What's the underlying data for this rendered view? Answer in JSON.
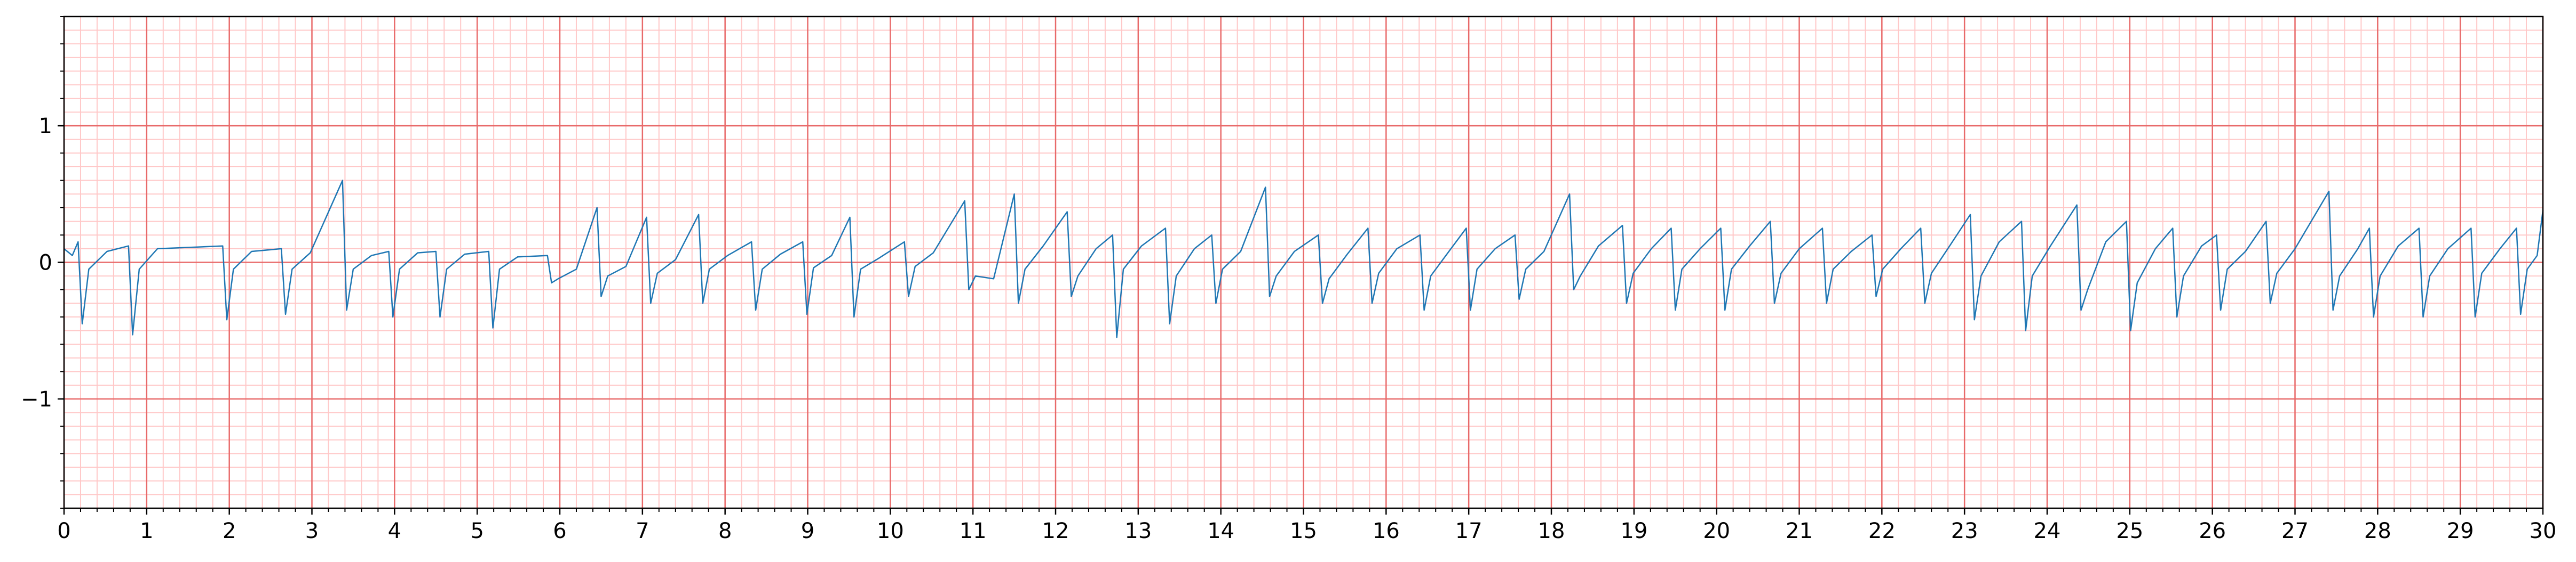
{
  "chart_data": {
    "type": "line",
    "x": [
      0,
      0.1,
      0.17,
      0.22,
      0.3,
      0.52,
      0.78,
      0.83,
      0.91,
      1.13,
      1.92,
      1.97,
      2.05,
      2.27,
      2.63,
      2.68,
      2.76,
      2.98,
      3.37,
      3.42,
      3.5,
      3.72,
      3.93,
      3.98,
      4.06,
      4.28,
      4.5,
      4.55,
      4.63,
      4.85,
      5.14,
      5.19,
      5.27,
      5.49,
      5.85,
      5.9,
      5.98,
      6.2,
      6.45,
      6.5,
      6.58,
      6.8,
      7.05,
      7.1,
      7.18,
      7.4,
      7.68,
      7.73,
      7.81,
      8.03,
      8.32,
      8.37,
      8.45,
      8.67,
      8.94,
      8.99,
      9.07,
      9.29,
      9.51,
      9.56,
      9.64,
      9.86,
      10.17,
      10.22,
      10.3,
      10.52,
      10.9,
      10.95,
      11.03,
      11.25,
      11.5,
      11.55,
      11.63,
      11.85,
      12.14,
      12.19,
      12.27,
      12.49,
      12.69,
      12.74,
      12.82,
      13.04,
      13.33,
      13.38,
      13.46,
      13.68,
      13.89,
      13.94,
      14.02,
      14.24,
      14.54,
      14.59,
      14.67,
      14.89,
      15.18,
      15.23,
      15.31,
      15.53,
      15.78,
      15.83,
      15.91,
      16.13,
      16.41,
      16.46,
      16.54,
      16.76,
      16.97,
      17.02,
      17.1,
      17.32,
      17.56,
      17.61,
      17.69,
      17.91,
      18.22,
      18.27,
      18.35,
      18.57,
      18.86,
      18.91,
      18.99,
      19.21,
      19.45,
      19.5,
      19.58,
      19.8,
      20.05,
      20.1,
      20.18,
      20.4,
      20.65,
      20.7,
      20.78,
      21.0,
      21.28,
      21.33,
      21.41,
      21.63,
      21.88,
      21.93,
      22.01,
      22.23,
      22.47,
      22.52,
      22.6,
      22.82,
      23.07,
      23.12,
      23.2,
      23.42,
      23.69,
      23.74,
      23.82,
      24.04,
      24.36,
      24.41,
      24.49,
      24.71,
      24.96,
      25.01,
      25.09,
      25.31,
      25.52,
      25.57,
      25.65,
      25.87,
      26.05,
      26.1,
      26.18,
      26.4,
      26.65,
      26.7,
      26.78,
      27.0,
      27.41,
      27.46,
      27.54,
      27.76,
      27.9,
      27.95,
      28.03,
      28.25,
      28.5,
      28.55,
      28.63,
      28.85,
      29.13,
      29.18,
      29.26,
      29.48,
      29.68,
      29.73,
      29.81,
      29.93,
      30.0
    ],
    "series": [
      {
        "color": "#1f77b4",
        "values": [
          0.1,
          0.05,
          0.15,
          -0.45,
          -0.05,
          0.08,
          0.12,
          -0.53,
          -0.05,
          0.1,
          0.12,
          -0.42,
          -0.05,
          0.08,
          0.1,
          -0.38,
          -0.05,
          0.07,
          0.6,
          -0.35,
          -0.05,
          0.05,
          0.08,
          -0.4,
          -0.05,
          0.07,
          0.08,
          -0.4,
          -0.05,
          0.06,
          0.08,
          -0.48,
          -0.05,
          0.04,
          0.05,
          -0.15,
          -0.12,
          -0.05,
          0.4,
          -0.25,
          -0.1,
          -0.03,
          0.33,
          -0.3,
          -0.08,
          0.02,
          0.35,
          -0.3,
          -0.05,
          0.05,
          0.15,
          -0.35,
          -0.05,
          0.06,
          0.15,
          -0.38,
          -0.04,
          0.05,
          0.33,
          -0.4,
          -0.05,
          0.03,
          0.15,
          -0.25,
          -0.03,
          0.07,
          0.45,
          -0.2,
          -0.1,
          -0.12,
          0.5,
          -0.3,
          -0.05,
          0.12,
          0.37,
          -0.25,
          -0.1,
          0.1,
          0.2,
          -0.55,
          -0.05,
          0.12,
          0.25,
          -0.45,
          -0.1,
          0.1,
          0.2,
          -0.3,
          -0.05,
          0.08,
          0.55,
          -0.25,
          -0.1,
          0.08,
          0.2,
          -0.3,
          -0.12,
          0.06,
          0.25,
          -0.3,
          -0.08,
          0.1,
          0.2,
          -0.35,
          -0.1,
          0.08,
          0.25,
          -0.35,
          -0.05,
          0.1,
          0.2,
          -0.27,
          -0.05,
          0.08,
          0.5,
          -0.2,
          -0.1,
          0.12,
          0.27,
          -0.3,
          -0.08,
          0.1,
          0.25,
          -0.35,
          -0.05,
          0.1,
          0.25,
          -0.35,
          -0.05,
          0.12,
          0.3,
          -0.3,
          -0.08,
          0.1,
          0.25,
          -0.3,
          -0.05,
          0.08,
          0.2,
          -0.25,
          -0.05,
          0.1,
          0.25,
          -0.3,
          -0.08,
          0.12,
          0.35,
          -0.42,
          -0.1,
          0.15,
          0.3,
          -0.5,
          -0.1,
          0.12,
          0.42,
          -0.35,
          -0.2,
          0.15,
          0.3,
          -0.5,
          -0.15,
          0.1,
          0.25,
          -0.4,
          -0.1,
          0.12,
          0.2,
          -0.35,
          -0.05,
          0.08,
          0.3,
          -0.3,
          -0.08,
          0.1,
          0.52,
          -0.35,
          -0.1,
          0.1,
          0.25,
          -0.4,
          -0.1,
          0.12,
          0.25,
          -0.4,
          -0.1,
          0.1,
          0.25,
          -0.4,
          -0.08,
          0.1,
          0.25,
          -0.38,
          -0.05,
          0.05,
          0.38
        ]
      }
    ],
    "xlim": [
      0,
      30
    ],
    "ylim": [
      -1.8,
      1.8
    ],
    "xticks": [
      0,
      1,
      2,
      3,
      4,
      5,
      6,
      7,
      8,
      9,
      10,
      11,
      12,
      13,
      14,
      15,
      16,
      17,
      18,
      19,
      20,
      21,
      22,
      23,
      24,
      25,
      26,
      27,
      28,
      29,
      30
    ],
    "yticks": [
      {
        "value": -1,
        "label": "−1"
      },
      0,
      1
    ],
    "grid": true,
    "minor_grid": {
      "x": 0.2,
      "y": 0.1
    },
    "major_grid_color": "#e86a6a",
    "minor_grid_color": "#ffc8c8"
  }
}
